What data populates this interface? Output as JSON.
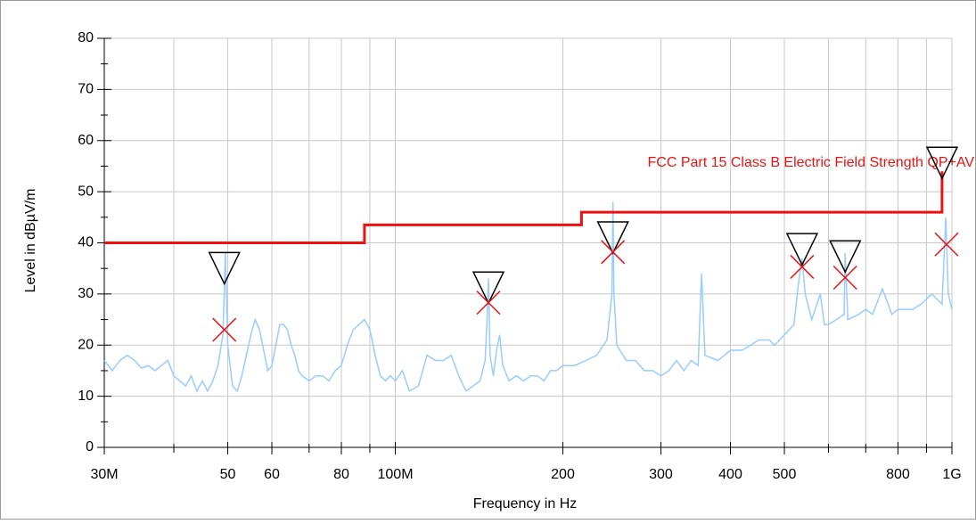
{
  "chart_data": {
    "type": "line",
    "x_label": "Frequency in Hz",
    "y_label": "Level in dBµV/m",
    "log_x": true,
    "grid": true,
    "xlim": [
      30000000.0,
      1000000000.0
    ],
    "ylim": [
      0,
      80
    ],
    "xticks": [
      {
        "value": 30000000.0,
        "label": "30M"
      },
      {
        "value": 50000000.0,
        "label": "50"
      },
      {
        "value": 60000000.0,
        "label": "60"
      },
      {
        "value": 80000000.0,
        "label": "80"
      },
      {
        "value": 100000000.0,
        "label": "100M"
      },
      {
        "value": 200000000.0,
        "label": "200"
      },
      {
        "value": 300000000.0,
        "label": "300"
      },
      {
        "value": 400000000.0,
        "label": "400"
      },
      {
        "value": 500000000.0,
        "label": "500"
      },
      {
        "value": 800000000.0,
        "label": "800"
      },
      {
        "value": 1000000000.0,
        "label": "1G"
      }
    ],
    "x_minor_ticks": [
      40000000.0,
      70000000.0,
      90000000.0,
      600000000.0,
      700000000.0,
      900000000.0
    ],
    "yticks": [
      0,
      10,
      20,
      30,
      40,
      50,
      60,
      70,
      80
    ],
    "y_minor_ticks": [
      5,
      15,
      25,
      35,
      45,
      55,
      65,
      75
    ],
    "series": [
      {
        "color": "#99ccff",
        "x": [
          30000000.0,
          31000000.0,
          32000000.0,
          33000000.0,
          34000000.0,
          35000000.0,
          36000000.0,
          37000000.0,
          38000000.0,
          39000000.0,
          40000000.0,
          41000000.0,
          42000000.0,
          43000000.0,
          44000000.0,
          45000000.0,
          46000000.0,
          47000000.0,
          48000000.0,
          49000000.0,
          49500000.0,
          50000000.0,
          51000000.0,
          52000000.0,
          53000000.0,
          54000000.0,
          55000000.0,
          56000000.0,
          57000000.0,
          58000000.0,
          59000000.0,
          60000000.0,
          61000000.0,
          62000000.0,
          63000000.0,
          64000000.0,
          65000000.0,
          66000000.0,
          67000000.0,
          68000000.0,
          70000000.0,
          72000000.0,
          74000000.0,
          76000000.0,
          78000000.0,
          80000000.0,
          82000000.0,
          84000000.0,
          86000000.0,
          88000000.0,
          90000000.0,
          92000000.0,
          94000000.0,
          96000000.0,
          98000000.0,
          100000000.0,
          103000000.0,
          106000000.0,
          110000000.0,
          114000000.0,
          118000000.0,
          122000000.0,
          126000000.0,
          130000000.0,
          134000000.0,
          138000000.0,
          142000000.0,
          145000000.0,
          146000000.0,
          147000000.0,
          148000000.0,
          150000000.0,
          152000000.0,
          154000000.0,
          156000000.0,
          160000000.0,
          165000000.0,
          170000000.0,
          175000000.0,
          180000000.0,
          185000000.0,
          190000000.0,
          195000000.0,
          200000000.0,
          210000000.0,
          220000000.0,
          230000000.0,
          240000000.0,
          245000000.0,
          246000000.0,
          247000000.0,
          250000000.0,
          260000000.0,
          270000000.0,
          280000000.0,
          290000000.0,
          300000000.0,
          310000000.0,
          320000000.0,
          330000000.0,
          340000000.0,
          350000000.0,
          355000000.0,
          360000000.0,
          380000000.0,
          400000000.0,
          420000000.0,
          450000000.0,
          470000000.0,
          480000000.0,
          500000000.0,
          520000000.0,
          530000000.0,
          538000000.0,
          545000000.0,
          560000000.0,
          580000000.0,
          590000000.0,
          600000000.0,
          620000000.0,
          640000000.0,
          643000000.0,
          650000000.0,
          680000000.0,
          700000000.0,
          720000000.0,
          750000000.0,
          780000000.0,
          800000000.0,
          850000000.0,
          880000000.0,
          920000000.0,
          940000000.0,
          960000000.0,
          975000000.0,
          985000000.0,
          1000000000.0
        ],
        "values": [
          17,
          15,
          17,
          18,
          17,
          15.5,
          16,
          15,
          16,
          17,
          14,
          13,
          12,
          14,
          11,
          13,
          11,
          13,
          16,
          22,
          38,
          20,
          12,
          11,
          14,
          18,
          22,
          25,
          23,
          19,
          15,
          16,
          20,
          24,
          24,
          23,
          20,
          18,
          15,
          14,
          13,
          14,
          14,
          13,
          15,
          16,
          20,
          23,
          24,
          25,
          23,
          18,
          14,
          13,
          14,
          13,
          15,
          11,
          12,
          18,
          17,
          17,
          18,
          14,
          11,
          12,
          13,
          17,
          24,
          33,
          18,
          14,
          19,
          22,
          16,
          13,
          14,
          13,
          14,
          14,
          13,
          15,
          15,
          16,
          16,
          17,
          18,
          21,
          30,
          48,
          30,
          20,
          17,
          17,
          15,
          15,
          14,
          15,
          17,
          15,
          17,
          16,
          34,
          18,
          17,
          19,
          19,
          21,
          21,
          20,
          22,
          24,
          32,
          37,
          30,
          25,
          30,
          24,
          24,
          25,
          26,
          38,
          25,
          26,
          27,
          26,
          31,
          26,
          27,
          27,
          28,
          30,
          29,
          28,
          45,
          30,
          27
        ]
      },
      {
        "name": "FCC Part 15 Class B Electric Field Strength QP+AV",
        "color": "#ee1111",
        "x": [
          30000000.0,
          88000000.0,
          88000000.0,
          216000000.0,
          216000000.0,
          960000000.0,
          960000000.0
        ],
        "values": [
          40,
          40,
          43.5,
          43.5,
          46,
          46,
          54
        ]
      }
    ],
    "peaks": {
      "color": "#000000",
      "x": [
        49300000.0,
        147000000.0,
        246000000.0,
        538000000.0,
        643000000.0,
        960000000.0
      ],
      "values": [
        32,
        28.2,
        38,
        35.7,
        34.3,
        52.6
      ]
    },
    "qp": {
      "color": "#ee1111",
      "x": [
        49300000.0,
        147000000.0,
        246000000.0,
        538000000.0,
        643000000.0,
        978000000.0
      ],
      "values": [
        23,
        28.3,
        38.2,
        35.3,
        33.2,
        39.7
      ]
    }
  }
}
